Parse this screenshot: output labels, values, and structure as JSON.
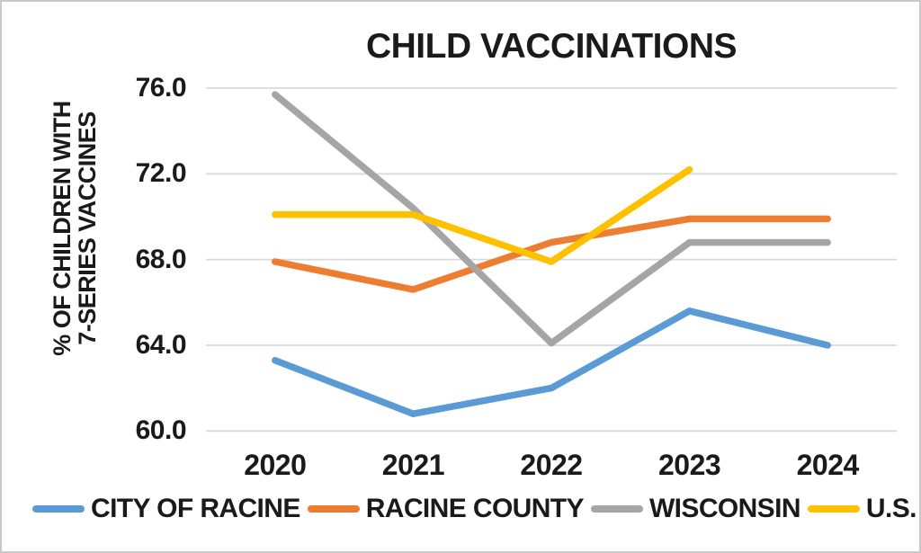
{
  "chart_data": {
    "type": "line",
    "title": "CHILD VACCINATIONS",
    "ylabel_lines": [
      "% OF CHILDREN WITH",
      "7-SERIES VACCINES"
    ],
    "xlabel": "",
    "categories": [
      "2020",
      "2021",
      "2022",
      "2023",
      "2024"
    ],
    "series": [
      {
        "name": "CITY OF RACINE",
        "color": "#5B9BD5",
        "values": [
          63.3,
          60.8,
          62.0,
          65.6,
          64.0
        ]
      },
      {
        "name": "RACINE COUNTY",
        "color": "#ED7D31",
        "values": [
          67.9,
          66.6,
          68.8,
          69.9,
          69.9
        ]
      },
      {
        "name": "WISCONSIN",
        "color": "#A5A5A5",
        "values": [
          75.7,
          70.4,
          64.1,
          68.8,
          68.8
        ]
      },
      {
        "name": "U.S.",
        "color": "#FFC000",
        "values": [
          70.1,
          70.1,
          67.9,
          72.2,
          null
        ]
      }
    ],
    "y_ticks": [
      76.0,
      72.0,
      68.0,
      64.0,
      60.0
    ],
    "y_tick_labels": [
      "76.0",
      "72.0",
      "68.0",
      "64.0",
      "60.0"
    ],
    "y_axis_range": [
      60.0,
      76.0
    ],
    "grid": true,
    "legend_position": "bottom"
  },
  "colors": {
    "background": "#FFFFFF",
    "border": "#C9C9C9",
    "gridline": "#D9D9D9",
    "text": "#1A1A1A"
  }
}
